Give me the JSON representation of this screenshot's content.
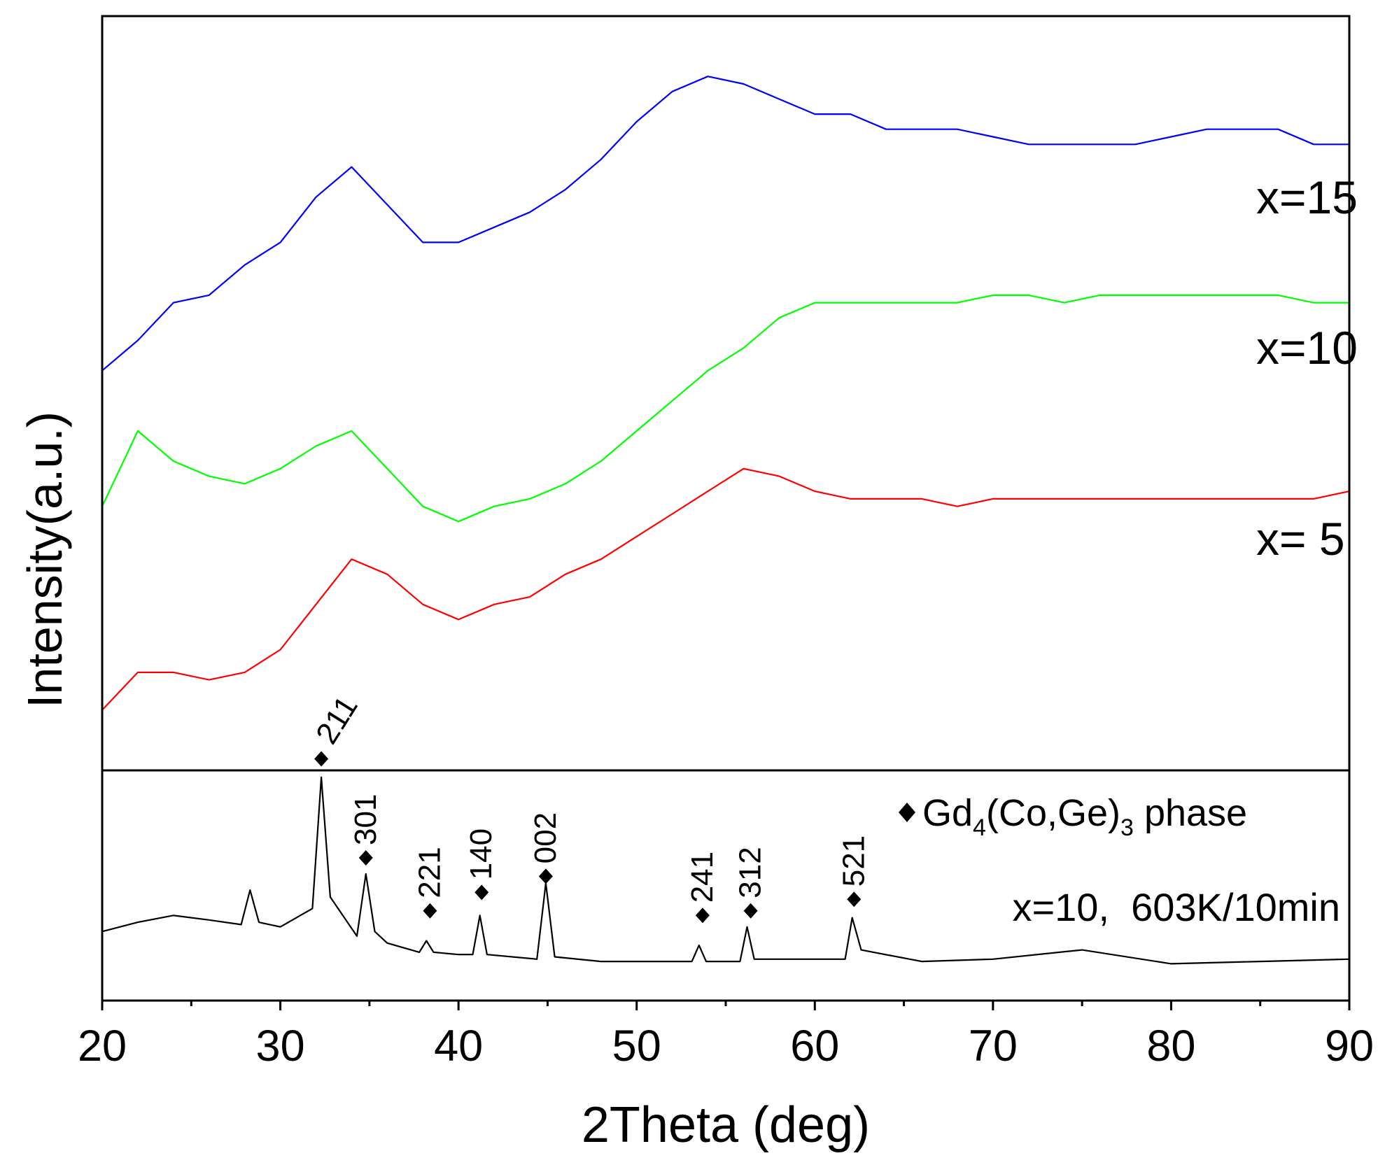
{
  "chart_data": [
    {
      "type": "line",
      "y_label": "Intensity(a.u.)",
      "xlim": [
        20,
        90
      ],
      "ylim": [
        0,
        100
      ],
      "yticks": [],
      "x": [
        20,
        22,
        24,
        26,
        28,
        30,
        32,
        34,
        36,
        38,
        40,
        42,
        44,
        46,
        48,
        50,
        52,
        54,
        56,
        58,
        60,
        62,
        64,
        66,
        68,
        70,
        72,
        74,
        76,
        78,
        80,
        82,
        84,
        86,
        88,
        90
      ],
      "series": [
        {
          "name": "x=15",
          "color": "#0000ff",
          "values": [
            53,
            57,
            62,
            63,
            67,
            70,
            76,
            80,
            75,
            70,
            70,
            72,
            74,
            77,
            81,
            86,
            90,
            92,
            91,
            89,
            87,
            87,
            85,
            85,
            85,
            84,
            83,
            83,
            83,
            83,
            84,
            85,
            85,
            85,
            83,
            83
          ]
        },
        {
          "name": "x=10",
          "color": "#00ff00",
          "values": [
            35,
            45,
            41,
            39,
            38,
            40,
            43,
            45,
            40,
            35,
            33,
            35,
            36,
            38,
            41,
            45,
            49,
            53,
            56,
            60,
            62,
            62,
            62,
            62,
            62,
            63,
            63,
            62,
            63,
            63,
            63,
            63,
            63,
            63,
            62,
            62
          ]
        },
        {
          "name": "x= 5",
          "color": "#ff0000",
          "values": [
            8,
            13,
            13,
            12,
            13,
            16,
            22,
            28,
            26,
            22,
            20,
            22,
            23,
            26,
            28,
            31,
            34,
            37,
            40,
            39,
            37,
            36,
            36,
            36,
            35,
            36,
            36,
            36,
            36,
            36,
            36,
            36,
            36,
            36,
            36,
            37
          ]
        }
      ]
    },
    {
      "type": "line",
      "x_label": "2Theta (deg)",
      "xlim": [
        20,
        90
      ],
      "ylim": [
        0,
        100
      ],
      "yticks": [],
      "xticks": [
        20,
        30,
        40,
        50,
        60,
        70,
        80,
        90
      ],
      "xminorticks": [
        25,
        35,
        45,
        55,
        65,
        75,
        85
      ],
      "x": [
        20,
        22,
        24,
        26,
        27.8,
        28.3,
        28.8,
        30,
        31.8,
        32.3,
        32.8,
        34.3,
        34.8,
        35.3,
        36,
        37.8,
        38.2,
        38.6,
        40,
        40.8,
        41.2,
        41.6,
        44.4,
        44.9,
        45.4,
        48,
        53.1,
        53.5,
        53.9,
        55.8,
        56.2,
        56.6,
        61.7,
        62.1,
        62.6,
        66,
        70,
        75,
        80,
        85,
        90
      ],
      "series": [
        {
          "color": "#000000",
          "values": [
            30,
            34,
            37,
            35,
            33,
            48,
            34,
            32,
            40,
            97,
            45,
            28,
            55,
            30,
            25,
            21,
            26,
            21,
            20,
            20,
            37,
            20,
            18,
            51,
            19,
            17,
            17,
            24,
            17,
            17,
            32,
            18,
            18,
            36,
            22,
            17,
            18,
            22,
            16,
            17,
            18
          ]
        }
      ],
      "peaks": [
        {
          "label": "211",
          "x": 32.3,
          "y": 105
        },
        {
          "label": "301",
          "x": 34.8,
          "y": 62
        },
        {
          "label": "221",
          "x": 38.4,
          "y": 39
        },
        {
          "label": "140",
          "x": 41.3,
          "y": 47
        },
        {
          "label": "002",
          "x": 44.9,
          "y": 54
        },
        {
          "label": "241",
          "x": 53.7,
          "y": 37
        },
        {
          "label": "312",
          "x": 56.4,
          "y": 39
        },
        {
          "label": "521",
          "x": 62.2,
          "y": 44
        }
      ],
      "phase_label": [
        "Gd",
        "4",
        "(Co,Ge)",
        "3",
        " phase"
      ],
      "annotation": "x=10,  603K/10min"
    }
  ]
}
